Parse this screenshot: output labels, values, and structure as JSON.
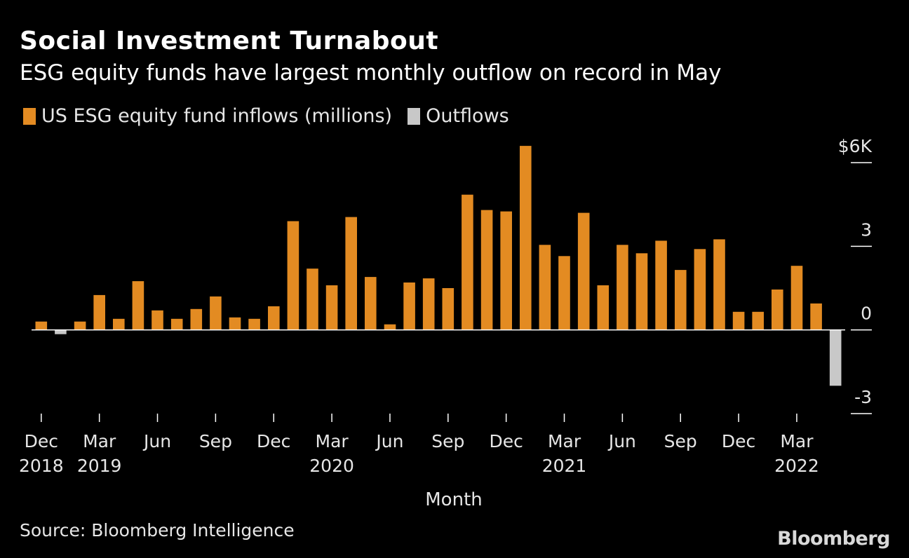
{
  "header": {
    "title": "Social Investment Turnabout",
    "subtitle": "ESG equity funds have largest monthly outflow on record in May"
  },
  "footer": {
    "source": "Source: Bloomberg Intelligence",
    "brand": "Bloomberg"
  },
  "colors": {
    "inflow": "#e38b22",
    "outflow": "#c8c8c8",
    "background": "#000000",
    "text": "#ffffff",
    "axis": "#ffffff"
  },
  "chart_data": {
    "type": "bar",
    "title": "Social Investment Turnabout",
    "subtitle": "ESG equity funds have largest monthly outflow on record in May",
    "xlabel": "Month",
    "ylabel": "",
    "ylim": [
      -3,
      6
    ],
    "y_ticks": [
      {
        "value": 6,
        "label": "$6K"
      },
      {
        "value": 3,
        "label": "3"
      },
      {
        "value": 0,
        "label": "0"
      },
      {
        "value": -3,
        "label": "-3"
      }
    ],
    "legend": [
      {
        "name": "US ESG equity fund inflows (millions)",
        "color": "#e38b22"
      },
      {
        "name": "Outflows",
        "color": "#c8c8c8"
      }
    ],
    "legend_position": "top-left",
    "grid": false,
    "categories": [
      "2018-12",
      "2019-01",
      "2019-02",
      "2019-03",
      "2019-04",
      "2019-05",
      "2019-06",
      "2019-07",
      "2019-08",
      "2019-09",
      "2019-10",
      "2019-11",
      "2019-12",
      "2020-01",
      "2020-02",
      "2020-03",
      "2020-04",
      "2020-05",
      "2020-06",
      "2020-07",
      "2020-08",
      "2020-09",
      "2020-10",
      "2020-11",
      "2020-12",
      "2021-01",
      "2021-02",
      "2021-03",
      "2021-04",
      "2021-05",
      "2021-06",
      "2021-07",
      "2021-08",
      "2021-09",
      "2021-10",
      "2021-11",
      "2021-12",
      "2022-01",
      "2022-02",
      "2022-03",
      "2022-04",
      "2022-05"
    ],
    "values": [
      0.3,
      -0.15,
      0.3,
      1.25,
      0.4,
      1.75,
      0.7,
      0.4,
      0.75,
      1.2,
      0.45,
      0.4,
      0.85,
      3.9,
      2.2,
      1.6,
      4.05,
      1.9,
      0.2,
      1.7,
      1.85,
      1.5,
      4.85,
      4.3,
      4.25,
      6.6,
      3.05,
      2.65,
      4.2,
      1.6,
      3.05,
      2.75,
      3.2,
      2.15,
      2.9,
      3.25,
      0.65,
      0.65,
      1.45,
      2.3,
      0.95,
      -2.0
    ],
    "x_tick_labels": [
      {
        "index": 0,
        "month": "Dec",
        "year": "2018"
      },
      {
        "index": 3,
        "month": "Mar",
        "year": "2019"
      },
      {
        "index": 6,
        "month": "Jun",
        "year": ""
      },
      {
        "index": 9,
        "month": "Sep",
        "year": ""
      },
      {
        "index": 12,
        "month": "Dec",
        "year": ""
      },
      {
        "index": 15,
        "month": "Mar",
        "year": "2020"
      },
      {
        "index": 18,
        "month": "Jun",
        "year": ""
      },
      {
        "index": 21,
        "month": "Sep",
        "year": ""
      },
      {
        "index": 24,
        "month": "Dec",
        "year": ""
      },
      {
        "index": 27,
        "month": "Mar",
        "year": "2021"
      },
      {
        "index": 30,
        "month": "Jun",
        "year": ""
      },
      {
        "index": 33,
        "month": "Sep",
        "year": ""
      },
      {
        "index": 36,
        "month": "Dec",
        "year": ""
      },
      {
        "index": 39,
        "month": "Mar",
        "year": "2022"
      }
    ]
  }
}
